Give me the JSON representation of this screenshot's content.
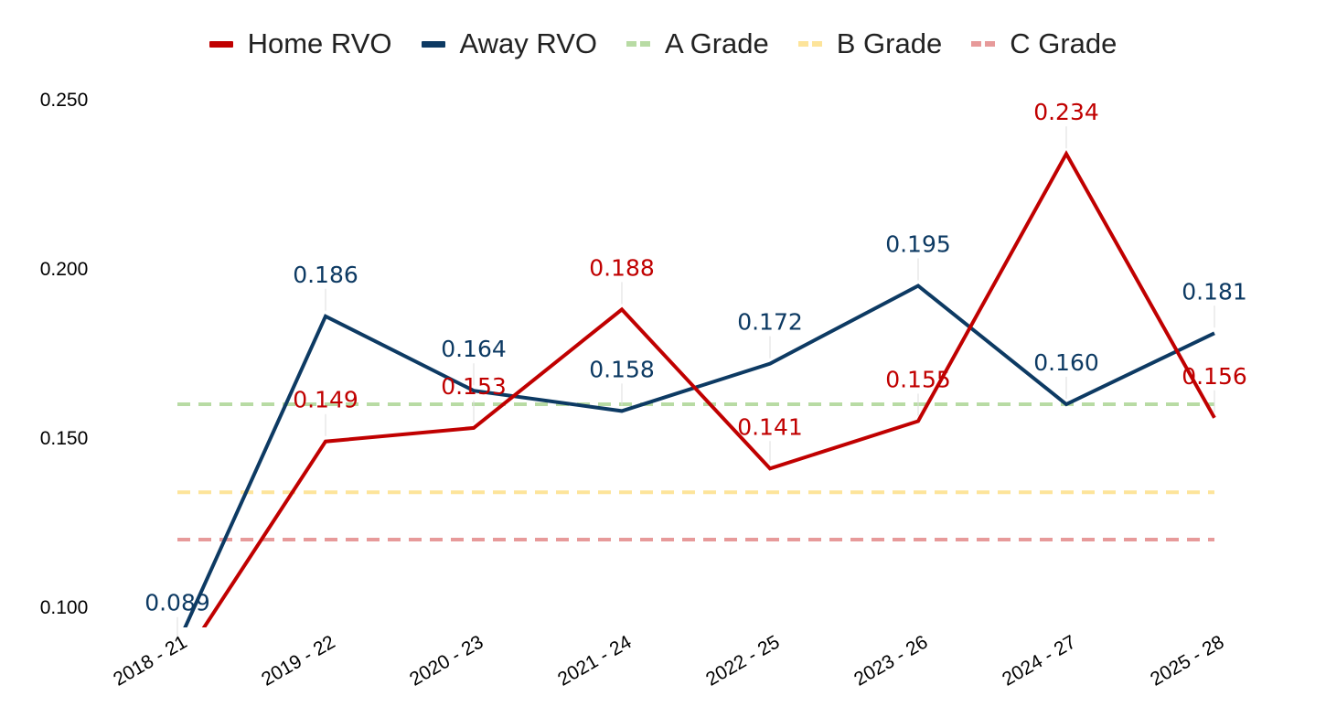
{
  "chart_data": {
    "type": "line",
    "categories": [
      "2018 - 21",
      "2019 - 22",
      "2020 - 23",
      "2021 - 24",
      "2022 - 25",
      "2023 - 26",
      "2024 - 27",
      "2025 - 28"
    ],
    "series": [
      {
        "name": "Home RVO",
        "color": "#c00000",
        "values": [
          0.082,
          0.149,
          0.153,
          0.188,
          0.141,
          0.155,
          0.234,
          0.156
        ],
        "labels": [
          "",
          "0.149",
          "0.153",
          "0.188",
          "0.141",
          "0.155",
          "0.234",
          "0.156"
        ]
      },
      {
        "name": "Away RVO",
        "color": "#0d3a63",
        "values": [
          0.089,
          0.186,
          0.164,
          0.158,
          0.172,
          0.195,
          0.16,
          0.181
        ],
        "labels": [
          "0.089",
          "0.186",
          "0.164",
          "0.158",
          "0.172",
          "0.195",
          "0.160",
          "0.181"
        ]
      }
    ],
    "reference_lines": [
      {
        "name": "A Grade",
        "value": 0.16,
        "color": "#b8dba4"
      },
      {
        "name": "B Grade",
        "value": 0.134,
        "color": "#fde49a"
      },
      {
        "name": "C Grade",
        "value": 0.12,
        "color": "#e79a9a"
      }
    ],
    "yticks": [
      "0.100",
      "0.150",
      "0.200",
      "0.250"
    ],
    "ylim": [
      0.093,
      0.25
    ],
    "grid": false,
    "legend_position": "top-center",
    "title": "",
    "xlabel": "",
    "ylabel": ""
  }
}
